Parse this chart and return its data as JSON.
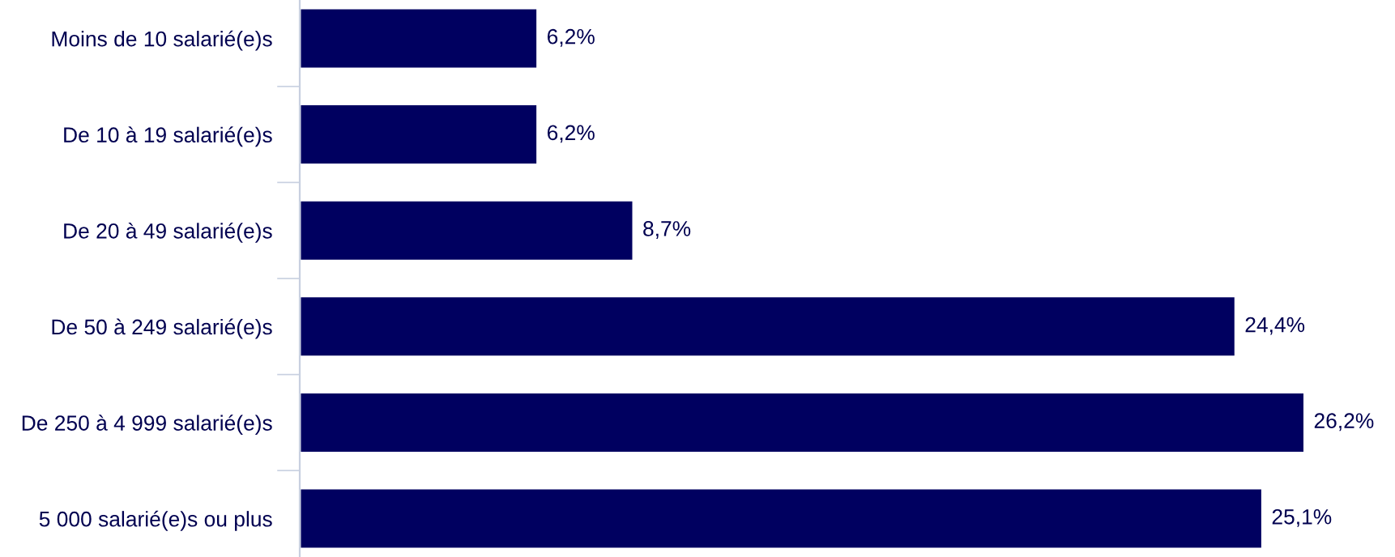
{
  "chart_data": {
    "type": "bar",
    "orientation": "horizontal",
    "categories": [
      "Moins de 10 salarié(e)s",
      "De 10 à 19 salarié(e)s",
      "De 20 à 49 salarié(e)s",
      "De 50 à 249 salarié(e)s",
      "De 250 à 4 999 salarié(e)s",
      "5 000 salarié(e)s ou plus"
    ],
    "values": [
      6.2,
      6.2,
      8.7,
      24.4,
      26.2,
      25.1
    ],
    "value_labels": [
      "6,2%",
      "6,2%",
      "8,7%",
      "24,4%",
      "26,2%",
      "25,1%"
    ],
    "color": "#000060",
    "grid": false,
    "legend": false
  }
}
